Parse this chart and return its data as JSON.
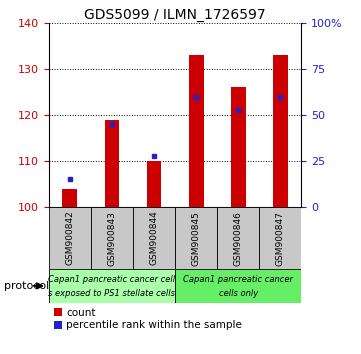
{
  "title": "GDS5099 / ILMN_1726597",
  "categories": [
    "GSM900842",
    "GSM900843",
    "GSM900844",
    "GSM900845",
    "GSM900846",
    "GSM900847"
  ],
  "red_values": [
    104,
    119,
    110,
    133,
    126,
    133
  ],
  "blue_values": [
    106,
    118,
    111,
    124,
    121,
    124
  ],
  "ylim_left": [
    100,
    140
  ],
  "yticks_left": [
    100,
    110,
    120,
    130,
    140
  ],
  "yticks_right": [
    0,
    25,
    50,
    75,
    100
  ],
  "ytick_labels_right": [
    "0",
    "25",
    "50",
    "75",
    "100%"
  ],
  "bar_color": "#cc0000",
  "blue_color": "#2222cc",
  "bar_width": 0.35,
  "tick_label_color_left": "#cc0000",
  "tick_label_color_right": "#2222cc",
  "protocol_label": "protocol",
  "group1_label1": "Capan1 pancreatic cancer cell",
  "group1_label2": "s exposed to PS1 stellate cells",
  "group2_label1": "Capan1 pancreatic cancer",
  "group2_label2": "cells only",
  "group1_color": "#aaffaa",
  "group2_color": "#66ee66",
  "label_bg": "#c8c8c8",
  "legend_count": "count",
  "legend_pct": "percentile rank within the sample",
  "title_fontsize": 10,
  "axis_fontsize": 8,
  "label_fontsize": 6.5,
  "protocol_fontsize": 6.0,
  "legend_fontsize": 7.5
}
